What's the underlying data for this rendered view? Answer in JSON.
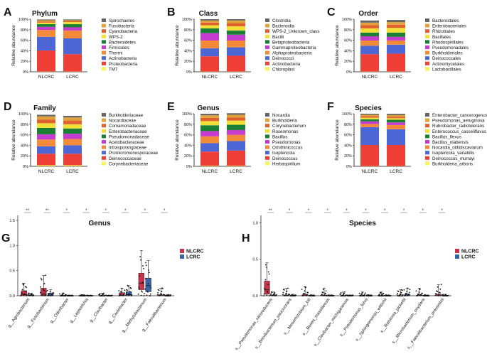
{
  "chart_data": [
    {
      "panel": "A",
      "type": "bar",
      "stacked": true,
      "title": "Phylum",
      "ylabel": "Relative abundance",
      "ylim": [
        0,
        100
      ],
      "yticks": [
        "0%",
        "20%",
        "40%",
        "60%",
        "80%",
        "100%"
      ],
      "categories": [
        "NLCRC",
        "LCRC"
      ],
      "series": [
        {
          "name": "TM7",
          "color": "#f7f35a",
          "values": [
            0.5,
            0.5
          ]
        },
        {
          "name": "Proteobacteria",
          "color": "#ef3e36",
          "values": [
            40,
            33
          ]
        },
        {
          "name": "Actinobacteria",
          "color": "#4d66d6",
          "values": [
            26,
            30
          ]
        },
        {
          "name": "Thermi",
          "color": "#f28a3a",
          "values": [
            13,
            15
          ]
        },
        {
          "name": "Firmicutes",
          "color": "#c43cd0",
          "values": [
            6,
            6
          ]
        },
        {
          "name": "Bacteroidetes",
          "color": "#1a7f35",
          "values": [
            5,
            6
          ]
        },
        {
          "name": "WPS-2",
          "color": "#f0e038",
          "values": [
            3,
            4
          ]
        },
        {
          "name": "Cyanobacteria",
          "color": "#e06030",
          "values": [
            2,
            2
          ]
        },
        {
          "name": "Fusobacteria",
          "color": "#e2a23a",
          "values": [
            2.5,
            1.5
          ]
        },
        {
          "name": "Spirochaetes",
          "color": "#666666",
          "values": [
            1.5,
            1.5
          ]
        }
      ]
    },
    {
      "panel": "B",
      "type": "bar",
      "stacked": true,
      "title": "Class",
      "ylabel": "Relative abundance",
      "ylim": [
        0,
        100
      ],
      "yticks": [
        "0%",
        "20%",
        "40%",
        "60%",
        "80%",
        "100%"
      ],
      "categories": [
        "NLCRC",
        "LCRC"
      ],
      "series": [
        {
          "name": "Chloroplast",
          "color": "#f7f35a",
          "values": [
            0.5,
            0.5
          ]
        },
        {
          "name": "Actinobacteria",
          "color": "#ef3e36",
          "values": [
            29,
            30
          ]
        },
        {
          "name": "Deinococci",
          "color": "#4d66d6",
          "values": [
            15,
            16
          ]
        },
        {
          "name": "Alphaproteobacteria",
          "color": "#f28a3a",
          "values": [
            15,
            13
          ]
        },
        {
          "name": "Gammaproteobacteria",
          "color": "#c43cd0",
          "values": [
            14,
            11
          ]
        },
        {
          "name": "Betaproteobacteria",
          "color": "#1a7f35",
          "values": [
            9,
            8
          ]
        },
        {
          "name": "Bacilli",
          "color": "#f0e038",
          "values": [
            6,
            8
          ]
        },
        {
          "name": "WPS-2_Unknown_class",
          "color": "#e06030",
          "values": [
            5,
            6
          ]
        },
        {
          "name": "Bacteroidia",
          "color": "#e2a23a",
          "values": [
            4,
            5
          ]
        },
        {
          "name": "Clostridia",
          "color": "#666666",
          "values": [
            2.5,
            2.5
          ]
        }
      ]
    },
    {
      "panel": "C",
      "type": "bar",
      "stacked": true,
      "title": "Order",
      "ylabel": "Relative abundance",
      "ylim": [
        0,
        100
      ],
      "yticks": [
        "0%",
        "20%",
        "40%",
        "60%",
        "80%",
        "100%"
      ],
      "categories": [
        "NLCRC",
        "LCRC"
      ],
      "series": [
        {
          "name": "Lactobacillales",
          "color": "#f7f35a",
          "values": [
            0.5,
            0.5
          ]
        },
        {
          "name": "Actinomycetales",
          "color": "#ef3e36",
          "values": [
            33,
            34
          ]
        },
        {
          "name": "Deinococcales",
          "color": "#4d66d6",
          "values": [
            16,
            17
          ]
        },
        {
          "name": "Burkholderiales",
          "color": "#f28a3a",
          "values": [
            10,
            8
          ]
        },
        {
          "name": "Pseudomonadales",
          "color": "#c43cd0",
          "values": [
            8,
            7
          ]
        },
        {
          "name": "Rhodospirillales",
          "color": "#1a7f35",
          "values": [
            7,
            8
          ]
        },
        {
          "name": "Bacillales",
          "color": "#f0e038",
          "values": [
            8,
            9
          ]
        },
        {
          "name": "Rhizobiales",
          "color": "#e06030",
          "values": [
            6,
            6
          ]
        },
        {
          "name": "Enterobacteriales",
          "color": "#e2a23a",
          "values": [
            5,
            5
          ]
        },
        {
          "name": "Bacteroidales",
          "color": "#666666",
          "values": [
            4,
            4
          ]
        }
      ]
    },
    {
      "panel": "D",
      "type": "bar",
      "stacked": true,
      "title": "Family",
      "ylabel": "Relative abundance",
      "ylim": [
        0,
        100
      ],
      "yticks": [
        "0%",
        "20%",
        "40%",
        "60%",
        "80%",
        "100%"
      ],
      "categories": [
        "NLCRC",
        "LCRC"
      ],
      "series": [
        {
          "name": "Corynebacteriaceae",
          "color": "#f7f35a",
          "values": [
            2,
            2
          ]
        },
        {
          "name": "Deinococcaceae",
          "color": "#ef3e36",
          "values": [
            22,
            22
          ]
        },
        {
          "name": "Promicromonosporaceae",
          "color": "#4d66d6",
          "values": [
            14,
            16
          ]
        },
        {
          "name": "Intrasporangiaceae",
          "color": "#f28a3a",
          "values": [
            13,
            12
          ]
        },
        {
          "name": "Acetobacteraceae",
          "color": "#c43cd0",
          "values": [
            10,
            10
          ]
        },
        {
          "name": "Pseudomonadaceae",
          "color": "#1a7f35",
          "values": [
            12,
            10
          ]
        },
        {
          "name": "Enterobacteriaceae",
          "color": "#f0e038",
          "values": [
            9,
            8
          ]
        },
        {
          "name": "Comamonadaceae",
          "color": "#e06030",
          "values": [
            7,
            7
          ]
        },
        {
          "name": "Nocardiaceae",
          "color": "#e2a23a",
          "values": [
            6,
            6
          ]
        },
        {
          "name": "Burkholderiaceae",
          "color": "#666666",
          "values": [
            3,
            3
          ]
        }
      ]
    },
    {
      "panel": "E",
      "type": "bar",
      "stacked": true,
      "title": "Genus",
      "ylabel": "Relative abundance",
      "ylim": [
        0,
        100
      ],
      "yticks": [
        "0%",
        "20%",
        "40%",
        "60%",
        "80%",
        "100%"
      ],
      "categories": [
        "NLCRC",
        "LCRC"
      ],
      "series": [
        {
          "name": "Herbaspirillum",
          "color": "#f7f35a",
          "values": [
            1,
            1
          ]
        },
        {
          "name": "Deinococcus",
          "color": "#ef3e36",
          "values": [
            27,
            29
          ]
        },
        {
          "name": "Isoptericola",
          "color": "#4d66d6",
          "values": [
            16,
            18
          ]
        },
        {
          "name": "Ornithinicoccus",
          "color": "#f28a3a",
          "values": [
            13,
            12
          ]
        },
        {
          "name": "Pseudomonas",
          "color": "#c43cd0",
          "values": [
            10,
            9
          ]
        },
        {
          "name": "Bacillus",
          "color": "#1a7f35",
          "values": [
            11,
            10
          ]
        },
        {
          "name": "Roseomonas",
          "color": "#f0e038",
          "values": [
            8,
            8
          ]
        },
        {
          "name": "Corynebacterium",
          "color": "#e06030",
          "values": [
            6,
            6
          ]
        },
        {
          "name": "Burkholderia",
          "color": "#e2a23a",
          "values": [
            5,
            5
          ]
        },
        {
          "name": "Nocardia",
          "color": "#666666",
          "values": [
            3,
            3
          ]
        }
      ]
    },
    {
      "panel": "F",
      "type": "bar",
      "stacked": true,
      "title": "Species",
      "ylabel": "Relative abundance",
      "ylim": [
        0,
        100
      ],
      "yticks": [
        "0%",
        "20%",
        "40%",
        "60%",
        "80%",
        "100%"
      ],
      "categories": [
        "NLCRC",
        "LCRC"
      ],
      "series": [
        {
          "name": "Burkholderia_arboris",
          "color": "#f7f35a",
          "values": [
            0.5,
            0.5
          ]
        },
        {
          "name": "Deinococcus_murrayi",
          "color": "#ef3e36",
          "values": [
            40,
            40
          ]
        },
        {
          "name": "Isoptericola_variabilis",
          "color": "#4d66d6",
          "values": [
            34,
            30
          ]
        },
        {
          "name": "Nocardia_otitidiscaviarum",
          "color": "#f28a3a",
          "values": [
            6,
            8
          ]
        },
        {
          "name": "Bacillus_niabensis",
          "color": "#c43cd0",
          "values": [
            5,
            5
          ]
        },
        {
          "name": "Bacillus_flexus",
          "color": "#1a7f35",
          "values": [
            4,
            5
          ]
        },
        {
          "name": "Enterococcus_casseliflavus",
          "color": "#f0e038",
          "values": [
            3,
            3
          ]
        },
        {
          "name": "Rubrobacter_radiotolerans",
          "color": "#e06030",
          "values": [
            3,
            3
          ]
        },
        {
          "name": "Pseudomonas_aeruginosa",
          "color": "#e2a23a",
          "values": [
            2.5,
            3
          ]
        },
        {
          "name": "Enterobacter_cancerogenus",
          "color": "#666666",
          "values": [
            2,
            2.5
          ]
        }
      ]
    },
    {
      "panel": "G",
      "type": "box",
      "title": "Genus",
      "ylim": [
        0,
        1.6
      ],
      "yticks": [
        0,
        0.5,
        1.0,
        1.5
      ],
      "tick_labels": [
        "0.0",
        "0.5",
        "1.0",
        "1.5"
      ],
      "legend": [
        "NLCRC",
        "LCRC"
      ],
      "group_colors": {
        "NLCRC": "#c8324a",
        "LCRC": "#3766a8"
      },
      "categories": [
        "g__Agrobacterium",
        "g__Fusobacterium",
        "g__Odoribacter",
        "g__Leptotrichia",
        "g__Clavibacter",
        "g__Caulobacter",
        "g__Methylobacterium",
        "g__Faecalibacterium"
      ],
      "series": [
        {
          "name": "NLCRC",
          "q1": [
            0,
            0,
            0,
            0,
            0,
            0,
            0.12,
            0
          ],
          "median": [
            0.02,
            0.03,
            0,
            0,
            0,
            0.01,
            0.25,
            0
          ],
          "q3": [
            0.1,
            0.15,
            0,
            0,
            0,
            0.06,
            0.45,
            0.02
          ],
          "whisker": [
            0.25,
            0.4,
            0.05,
            0.02,
            0.05,
            0.15,
            0.9,
            0.15
          ]
        },
        {
          "name": "LCRC",
          "q1": [
            0,
            0,
            0,
            0,
            0,
            0,
            0.08,
            0
          ],
          "median": [
            0,
            0,
            0,
            0,
            0,
            0.02,
            0.2,
            0
          ],
          "q3": [
            0.02,
            0.05,
            0,
            0,
            0,
            0.08,
            0.35,
            0
          ],
          "whisker": [
            0.05,
            0.12,
            0.01,
            0.01,
            0.01,
            0.2,
            0.7,
            0.02
          ]
        }
      ],
      "significance": [
        {
          "category": "g__Agrobacterium",
          "label": "**"
        },
        {
          "category": "g__Fusobacterium",
          "label": "**"
        },
        {
          "category": "g__Odoribacter",
          "label": "*"
        },
        {
          "category": "g__Leptotrichia",
          "label": "*"
        },
        {
          "category": "g__Clavibacter",
          "label": "*"
        },
        {
          "category": "g__Caulobacter",
          "label": "*"
        },
        {
          "category": "g__Methylobacterium",
          "label": "*"
        },
        {
          "category": "g__Faecalibacterium",
          "label": "*"
        }
      ]
    },
    {
      "panel": "H",
      "type": "box",
      "title": "Species",
      "ylim": [
        0,
        1.1
      ],
      "yticks": [
        0,
        0.5,
        1.0
      ],
      "tick_labels": [
        "0.0",
        "0.5",
        "1.0"
      ],
      "legend": [
        "NLCRC",
        "LCRC"
      ],
      "group_colors": {
        "NLCRC": "#c8324a",
        "LCRC": "#3766a8"
      },
      "categories": [
        "s__Pseudomonas_nitroreducens",
        "s__Brevibacterium_paucivorans",
        "s__Mesorhizobium_loti",
        "s__Bosea_massiliensis",
        "s__Clavibacter_michiganensis",
        "s__Pseudomonas_fulva",
        "s__Sphingomonas_wittichii",
        "s__Ralstonia_pickettii",
        "s__Microbacterium_oxydans",
        "s__Faecalibacterium_prausnitzii"
      ],
      "series": [
        {
          "name": "NLCRC",
          "q1": [
            0.02,
            0,
            0,
            0,
            0,
            0,
            0,
            0,
            0,
            0
          ],
          "median": [
            0.08,
            0,
            0,
            0,
            0,
            0,
            0,
            0,
            0,
            0
          ],
          "q3": [
            0.2,
            0.01,
            0.02,
            0.01,
            0,
            0,
            0,
            0,
            0.01,
            0.02
          ],
          "whisker": [
            0.45,
            0.1,
            0.12,
            0.1,
            0.05,
            0.05,
            0.05,
            0.08,
            0.1,
            0.15
          ]
        },
        {
          "name": "LCRC",
          "q1": [
            0,
            0,
            0,
            0,
            0,
            0,
            0,
            0,
            0,
            0
          ],
          "median": [
            0,
            0,
            0,
            0,
            0,
            0,
            0,
            0,
            0,
            0
          ],
          "q3": [
            0.01,
            0,
            0,
            0,
            0,
            0,
            0,
            0.02,
            0,
            0
          ],
          "whisker": [
            0.05,
            0.02,
            0.01,
            0.01,
            0.01,
            0.01,
            0.01,
            0.1,
            0.01,
            0.02
          ]
        }
      ],
      "significance": [
        {
          "category": "s__Pseudomonas_nitroreducens",
          "label": "**"
        },
        {
          "category": "s__Brevibacterium_paucivorans",
          "label": "*"
        },
        {
          "category": "s__Mesorhizobium_loti",
          "label": "*"
        },
        {
          "category": "s__Bosea_massiliensis",
          "label": "*"
        },
        {
          "category": "s__Clavibacter_michiganensis",
          "label": "*"
        },
        {
          "category": "s__Pseudomonas_fulva",
          "label": "*"
        },
        {
          "category": "s__Sphingomonas_wittichii",
          "label": "*"
        },
        {
          "category": "s__Ralstonia_pickettii",
          "label": "*"
        },
        {
          "category": "s__Microbacterium_oxydans",
          "label": "*"
        },
        {
          "category": "s__Faecalibacterium_prausnitzii",
          "label": "*"
        }
      ]
    }
  ]
}
